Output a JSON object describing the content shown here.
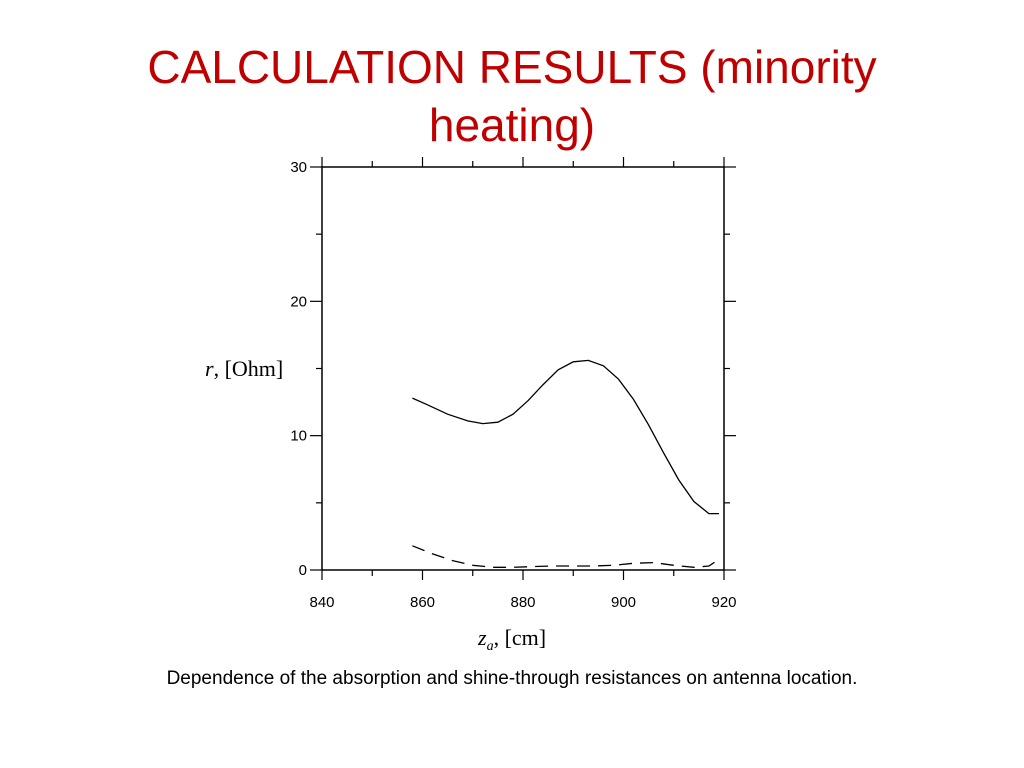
{
  "slide": {
    "title_line1": "CALCULATION RESULTS (minority",
    "title_line2": "heating)",
    "caption": "Dependence of the absorption and shine-through resistances on antenna location."
  },
  "colors": {
    "title": "#c00000",
    "axes": "#000000"
  },
  "chart_data": {
    "type": "line",
    "xlabel_symbol": "z",
    "xlabel_subscript": "a",
    "xlabel_unit": ", [cm]",
    "ylabel_symbol": "r",
    "ylabel_unit": ", [Ohm]",
    "xlim": [
      840,
      920
    ],
    "ylim": [
      0,
      30
    ],
    "xticks": [
      840,
      860,
      880,
      900,
      920
    ],
    "yticks": [
      0,
      10,
      20,
      30
    ],
    "grid": false,
    "series": [
      {
        "style": "solid",
        "x": [
          858,
          861,
          865,
          869,
          872,
          875,
          878,
          881,
          884,
          887,
          890,
          893,
          896,
          899,
          902,
          905,
          908,
          911,
          914,
          917,
          919
        ],
        "y": [
          12.8,
          12.3,
          11.6,
          11.1,
          10.9,
          11.0,
          11.6,
          12.6,
          13.8,
          14.9,
          15.5,
          15.6,
          15.2,
          14.2,
          12.7,
          10.8,
          8.7,
          6.7,
          5.1,
          4.2,
          4.2
        ]
      },
      {
        "style": "dashed",
        "x": [
          858,
          862,
          866,
          870,
          874,
          878,
          882,
          886,
          890,
          894,
          898,
          902,
          906,
          910,
          914,
          917,
          919
        ],
        "y": [
          1.8,
          1.2,
          0.7,
          0.35,
          0.2,
          0.2,
          0.25,
          0.3,
          0.3,
          0.3,
          0.35,
          0.5,
          0.55,
          0.35,
          0.2,
          0.3,
          0.8
        ]
      }
    ]
  }
}
